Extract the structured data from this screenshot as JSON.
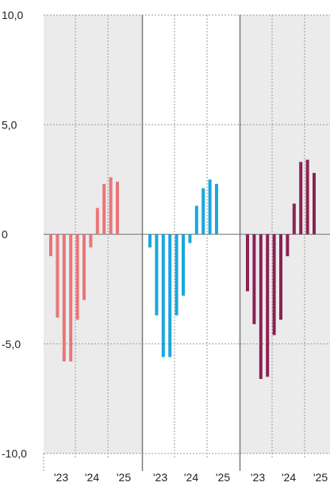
{
  "chart_data": {
    "type": "bar",
    "ylim": [
      -10,
      10
    ],
    "yticks": [
      {
        "value": 10,
        "label": "10,0"
      },
      {
        "value": 5,
        "label": "5,0"
      },
      {
        "value": 0,
        "label": "0"
      },
      {
        "value": -5,
        "label": "-5,0"
      },
      {
        "value": -10,
        "label": "-10,0"
      }
    ],
    "x_tick_labels": [
      "'23",
      "'24",
      "'25"
    ],
    "series": [
      {
        "color": "#e8767a",
        "panel_background": "#ebebeb",
        "values": [
          -1.0,
          -3.8,
          -5.8,
          -5.8,
          -3.9,
          -3.0,
          -0.6,
          1.2,
          2.3,
          2.6,
          2.4
        ]
      },
      {
        "color": "#1aa7dd",
        "panel_background": "#ffffff",
        "values": [
          -0.6,
          -3.7,
          -5.6,
          -5.6,
          -3.7,
          -2.8,
          -0.4,
          1.3,
          2.1,
          2.5,
          2.3
        ]
      },
      {
        "color": "#8b2252",
        "panel_background": "#ebebeb",
        "values": [
          -2.6,
          -4.1,
          -6.6,
          -6.5,
          -4.6,
          -3.9,
          -1.0,
          1.4,
          3.3,
          3.4,
          2.8
        ]
      }
    ],
    "grid": true,
    "legend": "none"
  }
}
